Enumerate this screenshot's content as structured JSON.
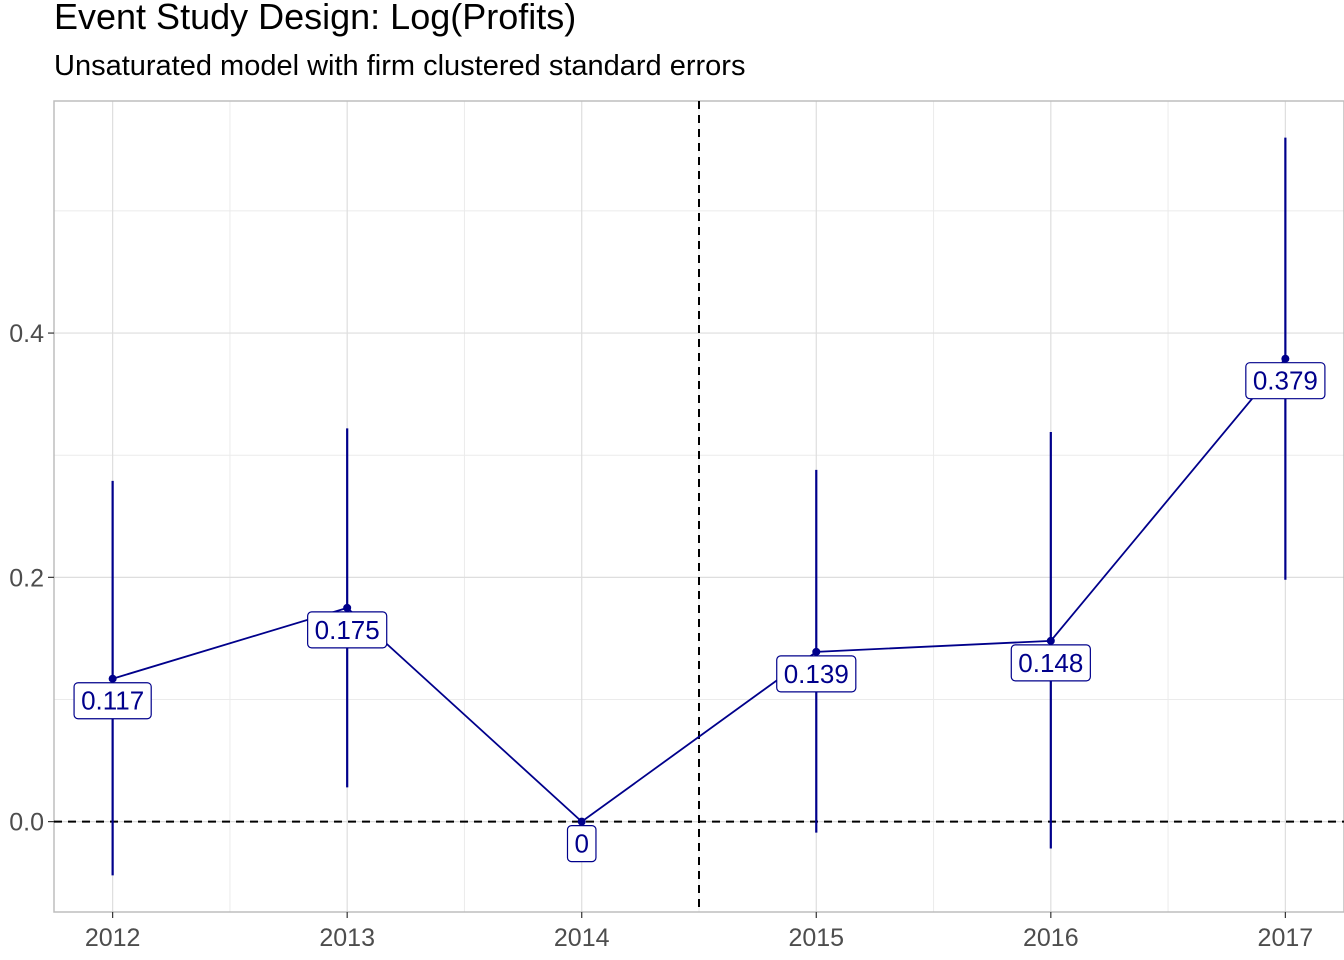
{
  "chart_data": {
    "type": "line",
    "title": "Event Study Design: Log(Profits)",
    "subtitle": "Unsaturated model with firm clustered standard errors",
    "xlabel": "",
    "ylabel": "",
    "x": [
      2012,
      2013,
      2014,
      2015,
      2016,
      2017
    ],
    "x_tick_labels": [
      "2012",
      "2013",
      "2014",
      "2015",
      "2016",
      "2017"
    ],
    "y_tick_labels": [
      "0.0",
      "0.2",
      "0.4"
    ],
    "y_ticks": [
      0.0,
      0.2,
      0.4
    ],
    "xlim": [
      2011.75,
      2017.25
    ],
    "ylim": [
      -0.074,
      0.59
    ],
    "series": [
      {
        "values": [
          0.117,
          0.175,
          0,
          0.139,
          0.148,
          0.379
        ],
        "ci_lower": [
          -0.044,
          0.028,
          0,
          -0.009,
          -0.022,
          0.198
        ],
        "ci_upper": [
          0.279,
          0.322,
          0,
          0.288,
          0.319,
          0.56
        ],
        "labels": [
          "0.117",
          "0.175",
          "0",
          "0.139",
          "0.148",
          "0.379"
        ],
        "color": "#00008B"
      }
    ],
    "reference_lines": {
      "hline_y": 0,
      "vline_x": 2014.5
    },
    "grid": true,
    "legend": "none"
  }
}
